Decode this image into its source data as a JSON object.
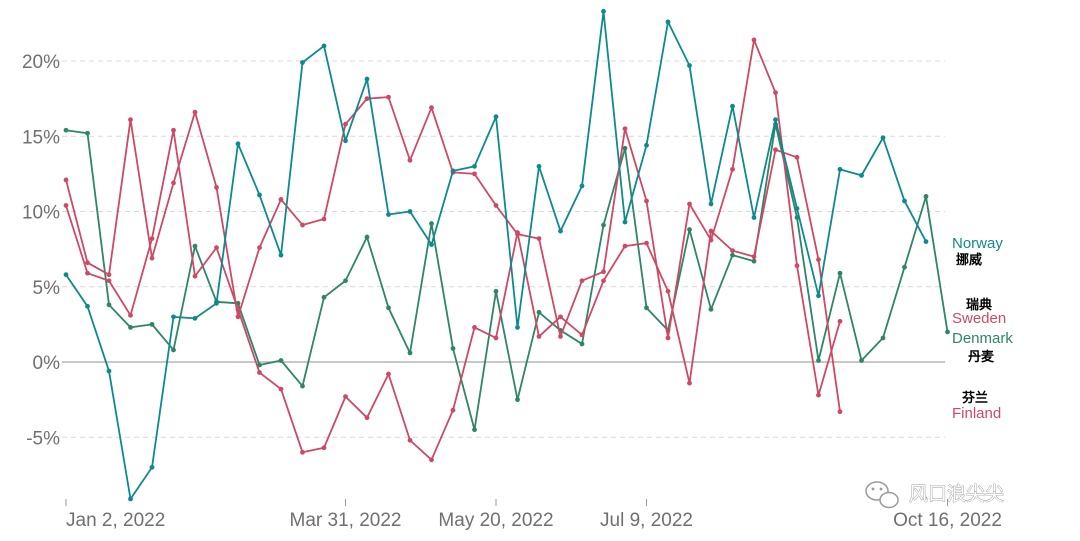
{
  "chart_data": {
    "type": "line",
    "title": "",
    "xlabel": "",
    "ylabel": "",
    "ylim": [
      -9.2,
      23.5
    ],
    "y_ticks": [
      -5,
      0,
      5,
      10,
      15,
      20
    ],
    "y_tick_labels": [
      "-5%",
      "0%",
      "5%",
      "10%",
      "15%",
      "20%"
    ],
    "x_tick_labels": [
      "Jan 2, 2022",
      "Mar 31, 2022",
      "May 20, 2022",
      "Jul 9, 2022",
      "Oct 16, 2022"
    ],
    "x_tick_index": [
      0,
      13,
      20,
      27,
      41
    ],
    "grid": "horizontal dashed",
    "zero_line": true,
    "series": [
      {
        "name": "Norway",
        "name_zh": "挪威",
        "color": "#0e8a8c",
        "values": [
          5.8,
          3.7,
          -0.6,
          -9.1,
          -7.0,
          3.0,
          2.9,
          3.9,
          14.5,
          11.1,
          7.1,
          19.9,
          21.0,
          14.7,
          18.8,
          9.8,
          10.0,
          7.8,
          12.7,
          13.0,
          16.3,
          2.3,
          13.0,
          8.7,
          11.7,
          23.3,
          9.3,
          14.4,
          22.6,
          19.7,
          10.5,
          17.0,
          9.6,
          16.1,
          10.2,
          4.4,
          12.8,
          12.4,
          14.9,
          10.7,
          8.0,
          null
        ]
      },
      {
        "name": "Sweden",
        "name_zh": "瑞典",
        "color": "#cc4a63",
        "values": [
          12.1,
          6.6,
          5.8,
          16.1,
          6.9,
          11.9,
          16.6,
          11.6,
          3.0,
          7.6,
          10.8,
          9.1,
          9.5,
          15.8,
          17.5,
          17.6,
          13.4,
          16.9,
          12.6,
          12.5,
          10.4,
          8.5,
          8.2,
          1.7,
          5.4,
          6.0,
          15.5,
          10.7,
          1.6,
          10.5,
          8.1,
          12.8,
          21.4,
          17.9,
          6.4,
          -2.2,
          2.7,
          null,
          null,
          null,
          null,
          null
        ]
      },
      {
        "name": "Denmark",
        "name_zh": "丹麦",
        "color": "#2e8567",
        "values": [
          15.4,
          15.2,
          3.8,
          2.3,
          2.5,
          0.8,
          7.7,
          4.0,
          3.9,
          -0.2,
          0.1,
          -1.6,
          4.3,
          5.4,
          8.3,
          3.6,
          0.6,
          9.2,
          0.9,
          -4.5,
          4.7,
          -2.5,
          3.3,
          2.1,
          1.2,
          9.1,
          14.2,
          3.6,
          2.1,
          8.8,
          3.5,
          7.1,
          6.7,
          15.8,
          9.6,
          0.1,
          5.9,
          0.1,
          1.6,
          6.3,
          11.0,
          2.0
        ]
      },
      {
        "name": "Finland",
        "name_zh": "芬兰",
        "color": "#cc4a63",
        "values": [
          10.4,
          5.9,
          5.4,
          3.1,
          8.2,
          15.4,
          5.7,
          7.6,
          3.5,
          -0.7,
          -1.8,
          -6.0,
          -5.7,
          -2.3,
          -3.7,
          -0.8,
          -5.2,
          -6.5,
          -3.2,
          2.3,
          1.6,
          8.6,
          1.7,
          3.0,
          1.8,
          5.4,
          7.7,
          7.9,
          4.7,
          -1.4,
          8.7,
          7.4,
          7.0,
          14.1,
          13.6,
          6.8,
          -3.3,
          null,
          null,
          null,
          null,
          null
        ]
      }
    ]
  },
  "watermark": {
    "text": "风口浪尖尖",
    "icon": "wechat-icon"
  }
}
